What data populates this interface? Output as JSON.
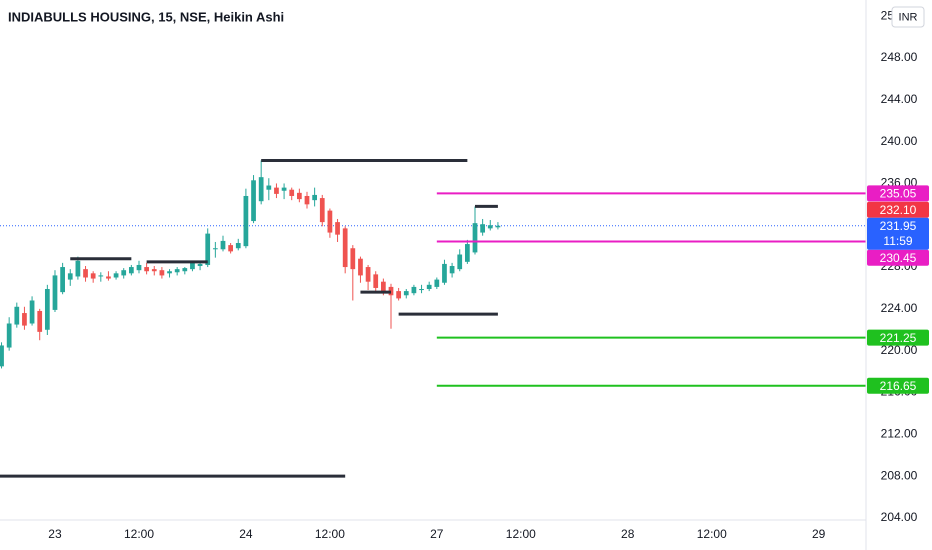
{
  "chart_data": {
    "type": "candlestick",
    "title": "INDIABULLS HOUSING, 15, NSE, Heikin Ashi",
    "currency": "INR",
    "up_color": "#26a69a",
    "down_color": "#ef5350",
    "grid": true,
    "xlim": [
      -0.2,
      113.2
    ],
    "xticks": [
      {
        "value": 7,
        "label": "23"
      },
      {
        "value": 18,
        "label": "12:00"
      },
      {
        "value": 32,
        "label": "24"
      },
      {
        "value": 43,
        "label": "12:00"
      },
      {
        "value": 57,
        "label": "27"
      },
      {
        "value": 68,
        "label": "12:00"
      },
      {
        "value": 82,
        "label": "28"
      },
      {
        "value": 93,
        "label": "12:00"
      },
      {
        "value": 107,
        "label": "29"
      }
    ],
    "ylim": [
      203.8,
      253.55
    ],
    "yticks": [
      {
        "value": 204,
        "label": "204.00"
      },
      {
        "value": 208,
        "label": "208.00"
      },
      {
        "value": 212,
        "label": "212.00"
      },
      {
        "value": 216,
        "label": "216.00"
      },
      {
        "value": 220,
        "label": "220.00"
      },
      {
        "value": 224,
        "label": "224.00"
      },
      {
        "value": 228,
        "label": "228.00"
      },
      {
        "value": 232,
        "label": "232.00"
      },
      {
        "value": 236,
        "label": "236.00"
      },
      {
        "value": 240,
        "label": "240.00"
      },
      {
        "value": 244,
        "label": "244.00"
      },
      {
        "value": 248,
        "label": "248.00"
      },
      {
        "value": 252,
        "label": "252.00"
      }
    ],
    "candles": {
      "open": [
        218.5,
        220.3,
        222.5,
        223.6,
        222.6,
        223.8,
        222.0,
        223.9,
        225.6,
        226.8,
        227.1,
        227.8,
        227.4,
        227.1,
        227.1,
        227.0,
        227.2,
        227.4,
        227.7,
        228.0,
        227.8,
        227.7,
        227.4,
        227.5,
        227.6,
        227.8,
        228.1,
        228.2,
        229.7,
        229.7,
        230.1,
        229.8,
        230.0,
        232.4,
        234.3,
        235.4,
        235.6,
        235.3,
        235.4,
        235.1,
        234.8,
        234.4,
        234.6,
        233.4,
        232.3,
        231.7,
        229.8,
        228.8,
        228.0,
        227.3,
        226.6,
        226.1,
        225.7,
        225.3,
        225.5,
        225.8,
        225.9,
        226.1,
        226.5,
        227.4,
        227.8,
        228.5,
        229.4,
        231.3,
        231.7,
        231.8
      ],
      "high": [
        220.8,
        223.2,
        224.6,
        224.2,
        225.2,
        224.0,
        226.3,
        227.7,
        228.4,
        227.8,
        229.0,
        228.1,
        227.6,
        227.5,
        227.6,
        227.6,
        227.9,
        228.2,
        228.6,
        228.4,
        228.1,
        228.0,
        227.8,
        228.0,
        228.0,
        228.6,
        228.5,
        231.7,
        230.4,
        231.0,
        230.3,
        230.7,
        235.5,
        236.8,
        238.2,
        236.5,
        236.0,
        236.0,
        235.6,
        235.5,
        235.2,
        235.6,
        234.9,
        233.6,
        232.6,
        231.9,
        230.1,
        229.0,
        228.2,
        227.6,
        226.9,
        226.4,
        226.0,
        225.9,
        226.3,
        226.3,
        226.6,
        227.0,
        228.7,
        228.4,
        229.7,
        230.6,
        233.8,
        232.6,
        232.5,
        232.3
      ],
      "low": [
        218.3,
        220.0,
        222.2,
        222.0,
        222.4,
        221.0,
        221.5,
        223.7,
        225.4,
        226.2,
        226.8,
        226.6,
        226.5,
        226.6,
        226.7,
        226.8,
        226.9,
        227.2,
        227.4,
        227.3,
        227.2,
        226.9,
        227.0,
        227.2,
        227.3,
        227.6,
        227.7,
        228.0,
        228.9,
        229.5,
        229.3,
        229.6,
        229.8,
        232.2,
        234.0,
        234.4,
        234.6,
        234.5,
        234.4,
        234.2,
        233.6,
        233.8,
        231.9,
        230.8,
        230.4,
        227.4,
        224.8,
        226.5,
        225.8,
        225.5,
        225.3,
        222.1,
        224.8,
        225.0,
        225.3,
        225.5,
        225.7,
        225.9,
        226.3,
        227.0,
        227.6,
        228.3,
        229.2,
        231.0,
        231.5,
        231.6
      ],
      "close": [
        220.5,
        222.6,
        224.2,
        222.4,
        224.8,
        221.8,
        225.9,
        227.2,
        228.0,
        227.4,
        228.6,
        227.0,
        226.9,
        227.2,
        226.9,
        227.4,
        227.7,
        228.0,
        228.2,
        227.6,
        227.6,
        227.2,
        227.6,
        227.8,
        227.9,
        228.4,
        228.3,
        231.2,
        229.8,
        230.5,
        229.5,
        230.3,
        234.8,
        236.3,
        236.6,
        235.8,
        235.0,
        235.6,
        234.8,
        234.5,
        234.0,
        234.9,
        232.3,
        231.3,
        231.1,
        228.0,
        227.8,
        227.2,
        226.6,
        226.0,
        225.7,
        225.3,
        225.0,
        225.7,
        226.1,
        225.9,
        226.3,
        226.8,
        228.3,
        228.1,
        229.2,
        230.2,
        232.2,
        232.1,
        232.0,
        231.95
      ]
    },
    "drawn_lines": [
      {
        "value": 238.2,
        "from": 34,
        "to": 61
      },
      {
        "value": 228.8,
        "from": 9,
        "to": 17
      },
      {
        "value": 228.5,
        "from": 19,
        "to": 27
      },
      {
        "value": 225.6,
        "from": 47,
        "to": 51
      },
      {
        "value": 223.5,
        "from": 52,
        "to": 65
      },
      {
        "value": 233.8,
        "from": 62,
        "to": 65
      },
      {
        "value": 208,
        "from": -0.2,
        "to": 45
      }
    ],
    "drawn_color": "#2a2e39",
    "levels": [
      {
        "value": 235.05,
        "color": "#e91ec4",
        "from": 57
      },
      {
        "value": 230.45,
        "color": "#e91ec4",
        "from": 57
      },
      {
        "value": 221.25,
        "color": "#1fc11f",
        "from": 57
      },
      {
        "value": 216.65,
        "color": "#1fc11f",
        "from": 57
      }
    ],
    "price_tags": [
      {
        "value": 232.1,
        "label": "232.10",
        "color": "#f23645"
      }
    ],
    "current_price": {
      "value": 231.95,
      "countdown": "11:59",
      "color": "#2962ff"
    }
  }
}
